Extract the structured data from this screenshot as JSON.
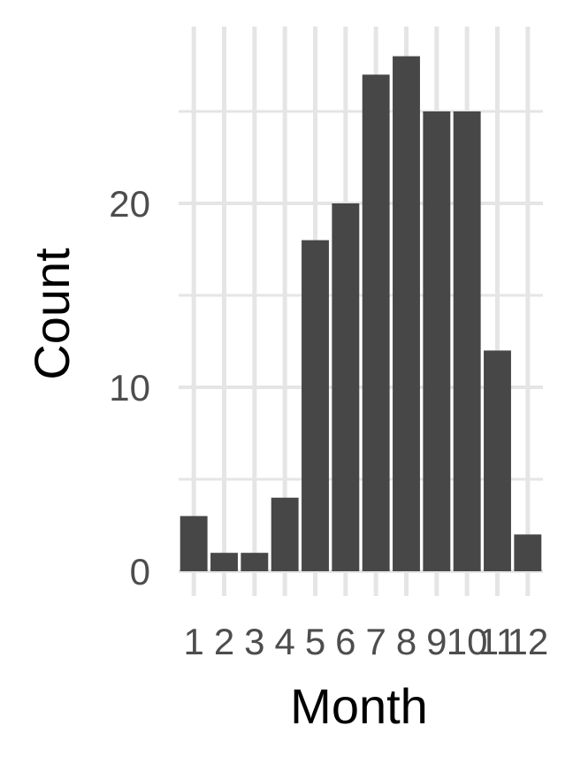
{
  "chart_data": {
    "type": "bar",
    "categories": [
      "1",
      "2",
      "3",
      "4",
      "5",
      "6",
      "7",
      "8",
      "9",
      "10",
      "11",
      "12"
    ],
    "values": [
      3,
      1,
      1,
      4,
      18,
      20,
      27,
      28,
      25,
      25,
      12,
      2
    ],
    "xlabel": "Month",
    "ylabel": "Count",
    "ylim": [
      0,
      28
    ],
    "yticks": [
      0,
      10,
      20
    ],
    "grid": true,
    "bar_color": "#474747",
    "grid_color": "#e5e5e5",
    "background": "#ffffff"
  }
}
